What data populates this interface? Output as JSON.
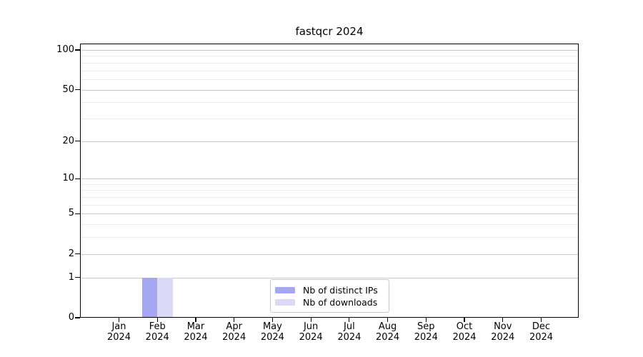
{
  "chart_data": {
    "type": "bar",
    "title": "fastqcr 2024",
    "categories": [
      "Jan",
      "Feb",
      "Mar",
      "Apr",
      "May",
      "Jun",
      "Jul",
      "Aug",
      "Sep",
      "Oct",
      "Nov",
      "Dec"
    ],
    "category_year": "2024",
    "series": [
      {
        "name": "Nb of distinct IPs",
        "color": "#a6a6f2",
        "values": [
          0,
          1,
          0,
          0,
          0,
          0,
          0,
          0,
          0,
          0,
          0,
          0
        ]
      },
      {
        "name": "Nb of downloads",
        "color": "#dadaf8",
        "values": [
          0,
          1,
          0,
          0,
          0,
          0,
          0,
          0,
          0,
          0,
          0,
          0
        ]
      }
    ],
    "xlabel": "",
    "ylabel": "",
    "y_scale": "log10(1+y)",
    "y_major_ticks": [
      0,
      1,
      2,
      5,
      10,
      20,
      50,
      100
    ],
    "y_minor_gridlines": [
      3,
      4,
      6,
      7,
      8,
      9,
      30,
      40,
      60,
      70,
      80,
      90
    ],
    "ylim": [
      0,
      112
    ],
    "grid": "horizontal-only",
    "legend_position": "inside-bottom-center",
    "colors": {
      "major_grid": "#c9c9c9",
      "minor_grid": "#ececec",
      "frame": "#000000",
      "background": "#ffffff"
    }
  }
}
